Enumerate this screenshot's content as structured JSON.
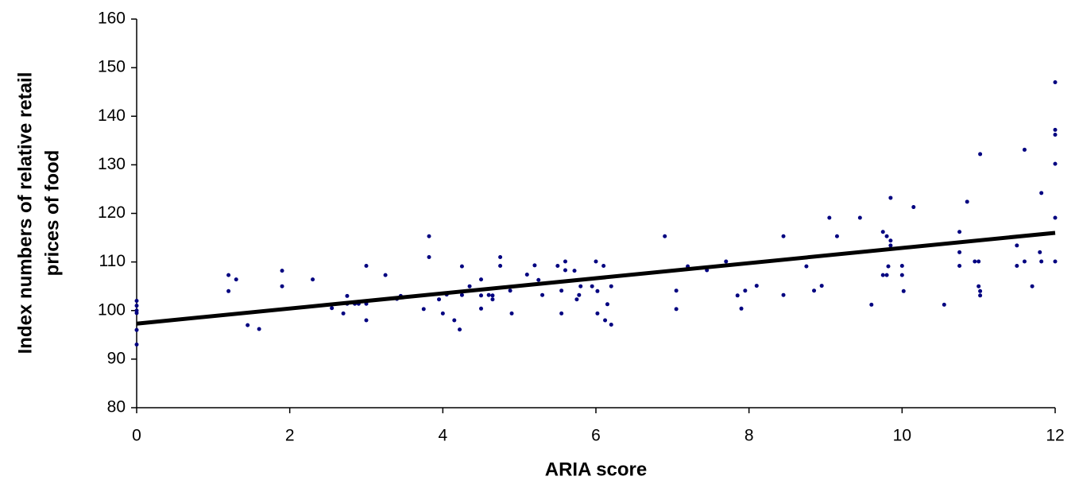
{
  "chart_data": {
    "type": "scatter",
    "xlabel": "ARIA score",
    "ylabel": [
      "Index numbers of relative retail",
      "prices of food"
    ],
    "xlim": [
      0,
      12
    ],
    "xticks": [
      0,
      2,
      4,
      6,
      8,
      10,
      12
    ],
    "ylim": [
      80,
      160
    ],
    "yticks": [
      80,
      90,
      100,
      110,
      120,
      130,
      140,
      150,
      160
    ],
    "series": [
      {
        "color": "#000080",
        "x": [
          0,
          0,
          0,
          0,
          0,
          0,
          1.2,
          1.2,
          1.3,
          1.45,
          1.6,
          1.9,
          1.9,
          2.3,
          2.55,
          2.7,
          2.75,
          2.75,
          2.85,
          2.9,
          3.0,
          3.0,
          3.0,
          3.25,
          3.4,
          3.45,
          3.75,
          3.82,
          3.82,
          3.95,
          4.0,
          4.05,
          4.15,
          4.22,
          4.25,
          4.25,
          4.35,
          4.5,
          4.5,
          4.5,
          4.6,
          4.65,
          4.65,
          4.75,
          4.75,
          4.88,
          4.9,
          5.1,
          5.2,
          5.25,
          5.3,
          5.5,
          5.55,
          5.55,
          5.6,
          5.6,
          5.72,
          5.75,
          5.78,
          5.8,
          5.95,
          6.0,
          6.02,
          6.02,
          6.1,
          6.12,
          6.15,
          6.2,
          6.2,
          6.9,
          7.05,
          7.05,
          7.2,
          7.45,
          7.7,
          7.85,
          7.9,
          7.95,
          8.1,
          8.45,
          8.45,
          8.75,
          8.85,
          8.95,
          9.05,
          9.15,
          9.45,
          9.6,
          9.75,
          9.75,
          9.8,
          9.8,
          9.82,
          9.85,
          9.85,
          9.85,
          10.0,
          10.0,
          10.02,
          10.15,
          10.55,
          10.75,
          10.75,
          10.75,
          10.85,
          10.95,
          11.0,
          11.0,
          11.02,
          11.02,
          11.02,
          11.5,
          11.5,
          11.6,
          11.6,
          11.7,
          11.8,
          11.82,
          11.82,
          12,
          12,
          12,
          12,
          12,
          12
        ],
        "values": [
          102,
          101,
          100,
          99.5,
          96,
          93,
          107.3,
          104,
          106.4,
          97,
          96.2,
          108.2,
          105,
          106.4,
          100.5,
          99.4,
          103,
          101.4,
          101.4,
          101.4,
          109.2,
          101.4,
          98,
          107.3,
          102.4,
          103,
          100.3,
          115.3,
          111,
          102.3,
          99.4,
          103.3,
          98,
          96.1,
          109.1,
          103.2,
          105,
          106.4,
          100.4,
          103.1,
          103.2,
          102.3,
          103.1,
          109.2,
          111,
          104.1,
          99.4,
          107.4,
          109.3,
          106.3,
          103.2,
          109.2,
          104.1,
          99.4,
          110.1,
          108.3,
          108.2,
          102.3,
          103.2,
          105,
          105,
          110.1,
          99.4,
          104,
          109.2,
          98,
          101.3,
          97.1,
          105,
          115.3,
          104.1,
          100.3,
          109.1,
          108.3,
          110.1,
          103.1,
          100.4,
          104.1,
          105.1,
          115.3,
          103.2,
          109.1,
          104.1,
          105.1,
          119.1,
          115.3,
          119.1,
          101.2,
          116.2,
          107.3,
          115.3,
          107.3,
          109.1,
          123.2,
          114.4,
          113.4,
          109.2,
          107.3,
          104,
          121.3,
          101.2,
          116.2,
          112,
          109.2,
          122.4,
          110.1,
          110.1,
          105,
          132.2,
          104,
          103.1,
          113.4,
          109.2,
          133.1,
          110.1,
          105,
          112,
          124.2,
          110.1,
          147,
          137.2,
          136.2,
          130.2,
          119.1,
          110.1
        ]
      }
    ],
    "trendline": {
      "x": [
        0,
        12
      ],
      "values": [
        97.3,
        116
      ],
      "color": "#000000"
    }
  }
}
